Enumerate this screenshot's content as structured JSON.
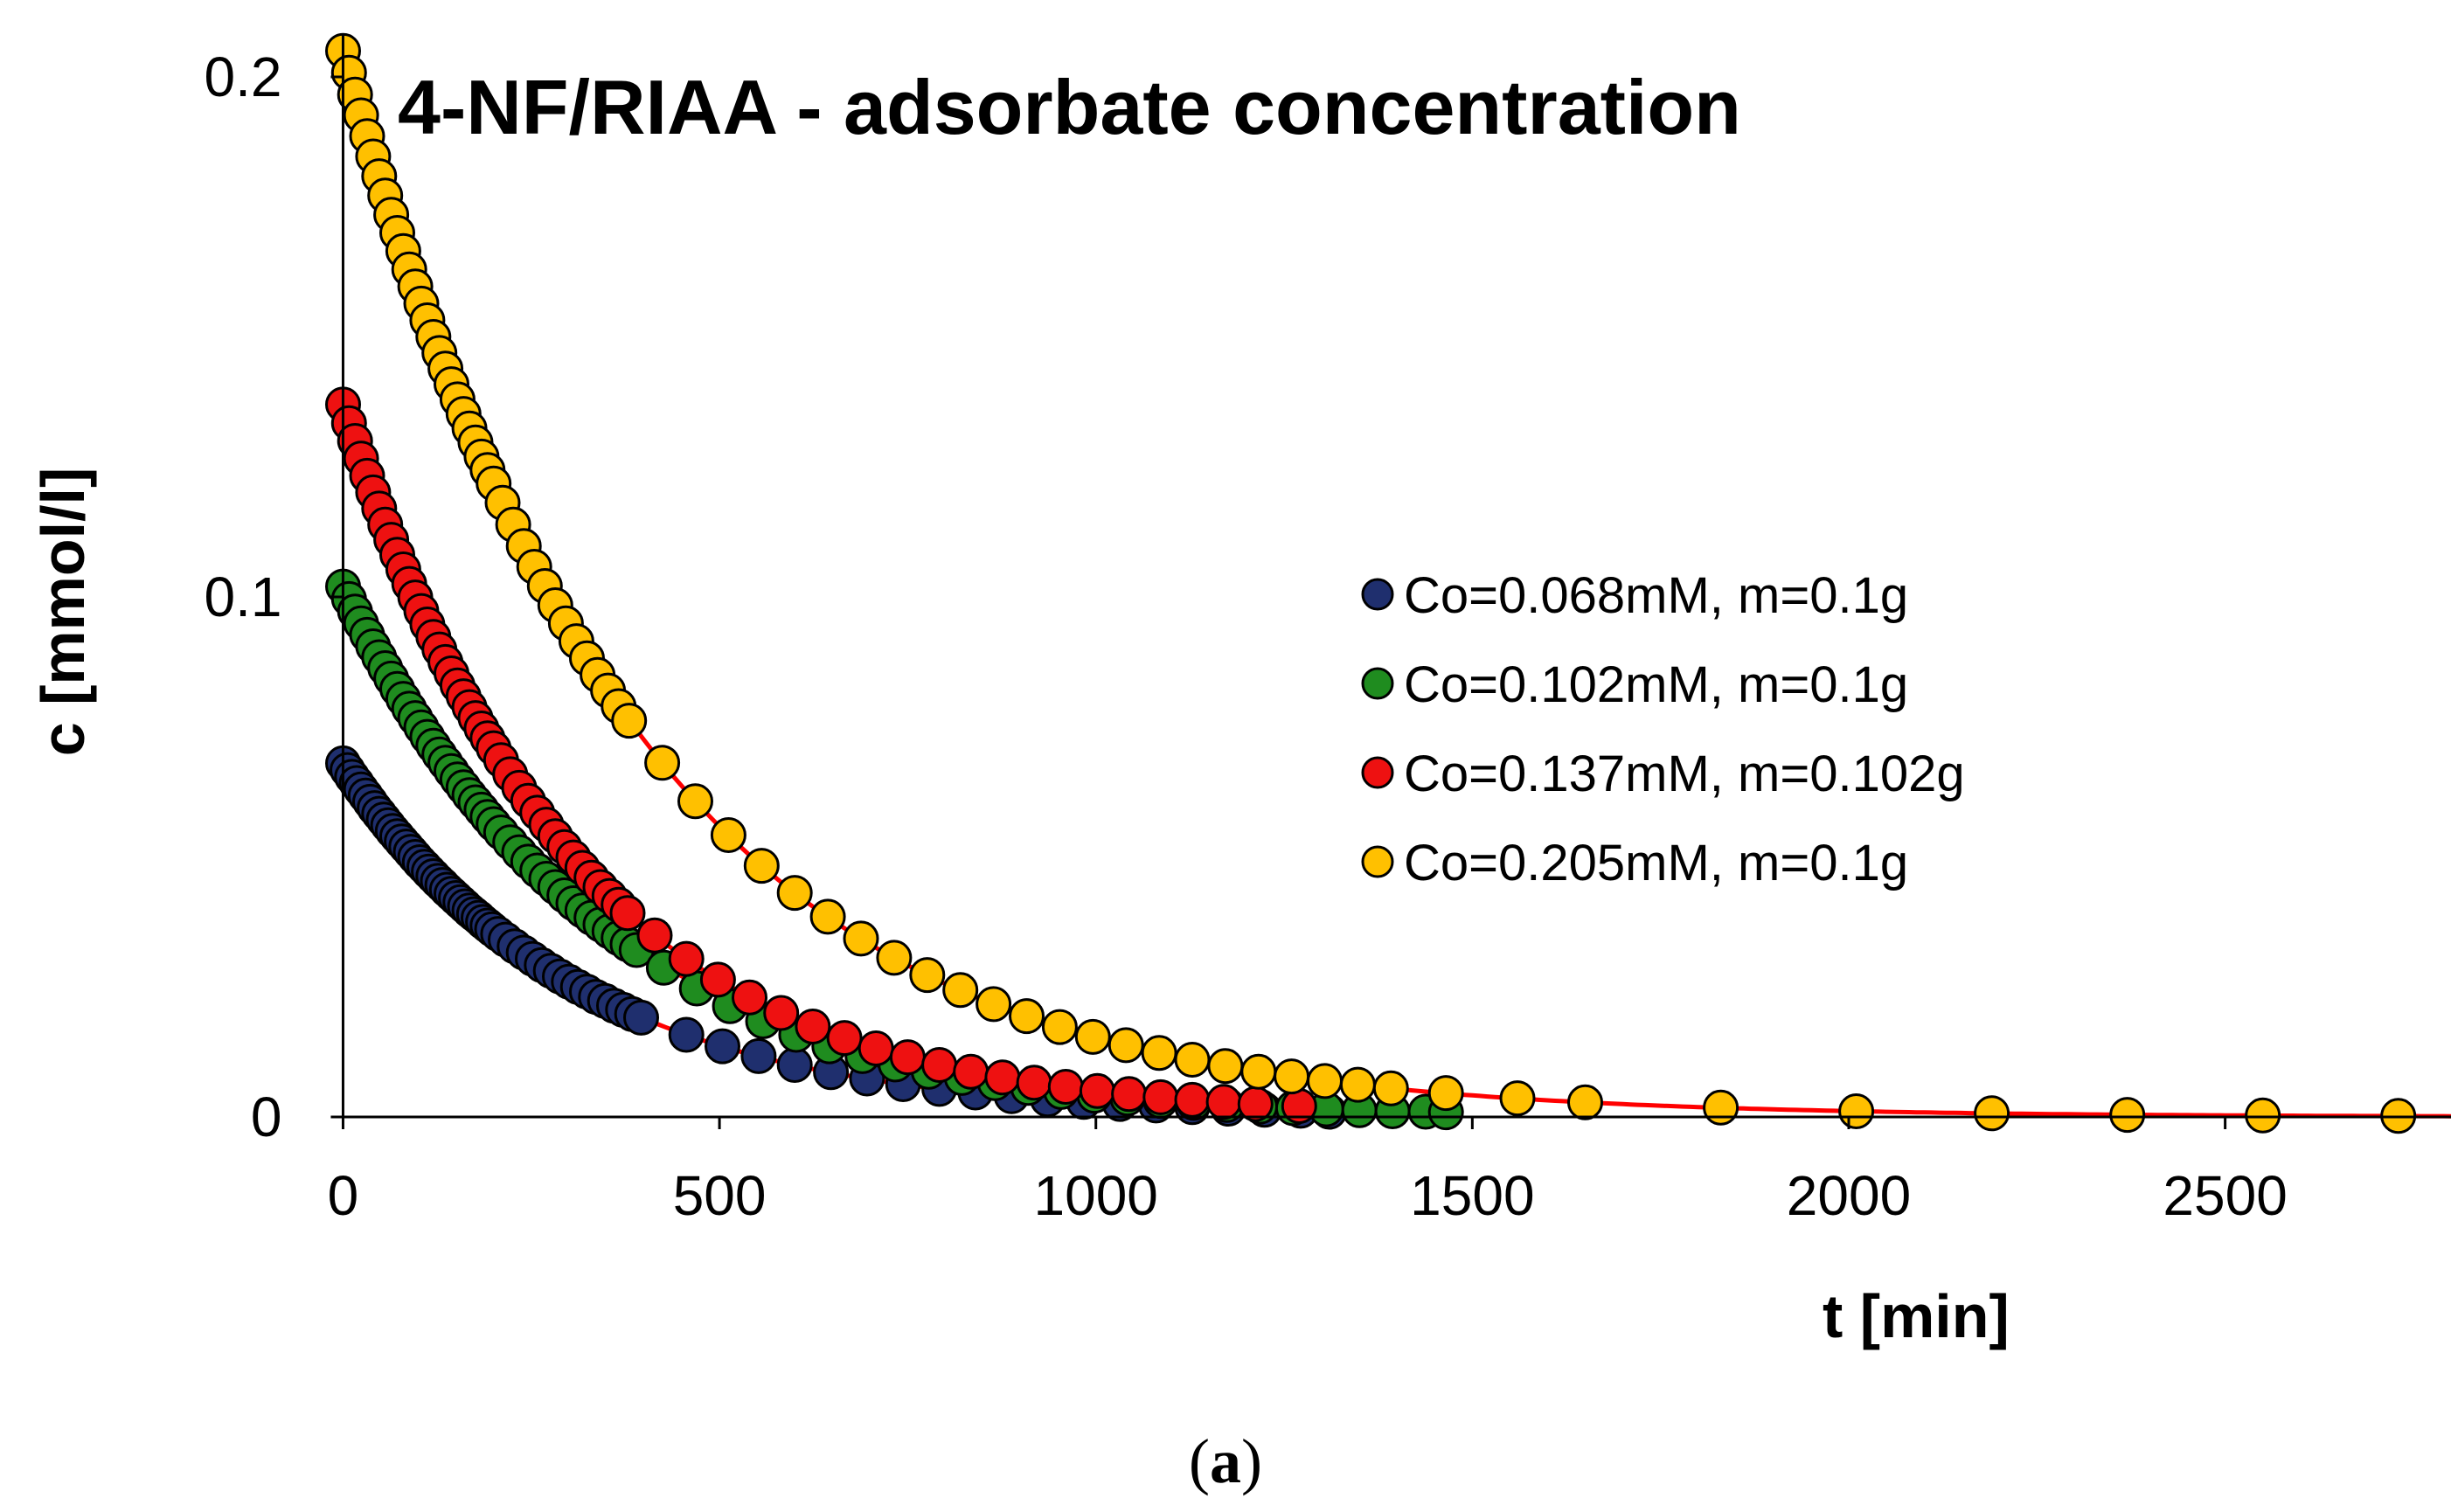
{
  "chart_data": {
    "type": "scatter",
    "title": "4-NF/RIAA - adsorbate concentration",
    "xlabel": "t [min]",
    "ylabel": "c [mmol/l]",
    "caption_prefix": "(",
    "caption_letter": "a",
    "caption_suffix": ")",
    "xlim": [
      -40,
      2800
    ],
    "ylim": [
      0,
      0.21
    ],
    "xticks": [
      0,
      500,
      1000,
      1500,
      2000,
      2500
    ],
    "xtick_labels": [
      "0",
      "500",
      "1000",
      "1500",
      "2000",
      "2500"
    ],
    "yticks": [
      0,
      0.1,
      0.2
    ],
    "ytick_labels": [
      "0",
      "0.1",
      "0.2"
    ],
    "fit_color": "#ff0000",
    "legend_position": "middle-right",
    "series": [
      {
        "name": "Co=0.068mM, m=0.1g",
        "color": "#1f2f6e",
        "c0": 0.068,
        "k": 0.0032,
        "t_end": 1310,
        "fit_end": 1310,
        "x": [
          0,
          6,
          12,
          18,
          24,
          30,
          36,
          42,
          48,
          54,
          60,
          66,
          72,
          78,
          84,
          90,
          96,
          102,
          108,
          114,
          120,
          126,
          132,
          138,
          144,
          150,
          156,
          162,
          168,
          174,
          180,
          186,
          192,
          198,
          206,
          216,
          228,
          240,
          252,
          264,
          276,
          288,
          300,
          312,
          324,
          336,
          348,
          360,
          372,
          384,
          396,
          456,
          504,
          552,
          600,
          648,
          696,
          744,
          792,
          840,
          888,
          936,
          984,
          1032,
          1080,
          1128,
          1176,
          1224,
          1272,
          1310
        ],
        "y": [
          0.068,
          0.0667,
          0.0654,
          0.0642,
          0.063,
          0.0618,
          0.0606,
          0.0594,
          0.0583,
          0.0572,
          0.0561,
          0.055,
          0.054,
          0.053,
          0.052,
          0.051,
          0.05,
          0.049,
          0.0481,
          0.0472,
          0.0463,
          0.0454,
          0.0446,
          0.0437,
          0.0429,
          0.0421,
          0.0413,
          0.0405,
          0.0397,
          0.039,
          0.0383,
          0.0375,
          0.0368,
          0.0361,
          0.0352,
          0.0341,
          0.0328,
          0.0316,
          0.0304,
          0.0292,
          0.0281,
          0.027,
          0.026,
          0.025,
          0.0241,
          0.0231,
          0.0223,
          0.0214,
          0.0206,
          0.0198,
          0.0191,
          0.0158,
          0.0136,
          0.0117,
          0.01,
          0.0086,
          0.0074,
          0.0063,
          0.0054,
          0.0047,
          0.004,
          0.0034,
          0.0029,
          0.0025,
          0.0022,
          0.0019,
          0.0016,
          0.0014,
          0.0012,
          0.001
        ]
      },
      {
        "name": "Co=0.102mM, m=0.1g",
        "color": "#1f8c1f",
        "c0": 0.102,
        "k": 0.00295,
        "t_end": 1465,
        "fit_end": 1400,
        "x": [
          0,
          8,
          16,
          24,
          32,
          40,
          48,
          56,
          64,
          72,
          80,
          88,
          96,
          104,
          112,
          120,
          128,
          136,
          144,
          152,
          160,
          168,
          176,
          184,
          192,
          200,
          210,
          222,
          234,
          246,
          258,
          270,
          282,
          294,
          306,
          318,
          330,
          342,
          354,
          366,
          378,
          390,
          426,
          470,
          514,
          558,
          602,
          646,
          690,
          734,
          778,
          822,
          866,
          910,
          954,
          998,
          1042,
          1086,
          1130,
          1174,
          1218,
          1262,
          1306,
          1350,
          1394,
          1438,
          1465
        ],
        "y": [
          0.102,
          0.0996,
          0.0972,
          0.0949,
          0.0927,
          0.0905,
          0.0884,
          0.0863,
          0.0843,
          0.0823,
          0.0804,
          0.0785,
          0.0767,
          0.0749,
          0.0731,
          0.0714,
          0.0697,
          0.0681,
          0.0665,
          0.0649,
          0.0634,
          0.0619,
          0.0605,
          0.0591,
          0.0577,
          0.0563,
          0.0547,
          0.0528,
          0.0509,
          0.0491,
          0.0474,
          0.0458,
          0.0442,
          0.0426,
          0.0411,
          0.0397,
          0.0383,
          0.037,
          0.0357,
          0.0344,
          0.0332,
          0.0321,
          0.0287,
          0.0247,
          0.0213,
          0.0184,
          0.0158,
          0.0136,
          0.0117,
          0.0101,
          0.0087,
          0.0075,
          0.0065,
          0.0056,
          0.0048,
          0.0041,
          0.0036,
          0.0031,
          0.0027,
          0.0023,
          0.002,
          0.0017,
          0.0015,
          0.0013,
          0.0011,
          0.001,
          0.0009
        ]
      },
      {
        "name": "Co=0.137mM, m=0.102g",
        "color": "#ee1111",
        "c0": 0.137,
        "k": 0.0033,
        "t_end": 1270,
        "fit_end": 1270,
        "x": [
          0,
          8,
          16,
          24,
          32,
          40,
          48,
          56,
          64,
          72,
          80,
          88,
          96,
          104,
          112,
          120,
          128,
          136,
          144,
          152,
          160,
          168,
          176,
          184,
          192,
          200,
          210,
          222,
          234,
          246,
          258,
          270,
          282,
          294,
          306,
          318,
          330,
          342,
          354,
          366,
          378,
          414,
          456,
          498,
          540,
          582,
          624,
          666,
          708,
          750,
          792,
          834,
          876,
          918,
          960,
          1002,
          1044,
          1086,
          1128,
          1170,
          1212,
          1270
        ],
        "y": [
          0.137,
          0.1334,
          0.13,
          0.1266,
          0.1233,
          0.1201,
          0.117,
          0.1139,
          0.111,
          0.1081,
          0.1053,
          0.1025,
          0.0999,
          0.0973,
          0.0947,
          0.0923,
          0.0899,
          0.0875,
          0.0853,
          0.083,
          0.0809,
          0.0788,
          0.0767,
          0.0747,
          0.0728,
          0.0709,
          0.0686,
          0.0659,
          0.0633,
          0.0608,
          0.0585,
          0.0562,
          0.054,
          0.0519,
          0.0499,
          0.0479,
          0.046,
          0.0442,
          0.0425,
          0.0408,
          0.0392,
          0.0349,
          0.0304,
          0.0264,
          0.023,
          0.02,
          0.0174,
          0.0152,
          0.0132,
          0.0115,
          0.01,
          0.0087,
          0.0076,
          0.0066,
          0.0058,
          0.005,
          0.0044,
          0.0038,
          0.0033,
          0.0029,
          0.0025,
          0.0021
        ]
      },
      {
        "name": "Co=0.205mM, m=0.1g",
        "color": "#ffc000",
        "c0": 0.205,
        "k": 0.0026,
        "t_end": 2730,
        "fit_end": 2800,
        "x": [
          0,
          8,
          16,
          24,
          32,
          40,
          48,
          56,
          64,
          72,
          80,
          88,
          96,
          104,
          112,
          120,
          128,
          136,
          144,
          152,
          160,
          168,
          176,
          184,
          192,
          200,
          212,
          226,
          240,
          254,
          268,
          282,
          296,
          310,
          324,
          338,
          352,
          366,
          380,
          424,
          468,
          512,
          556,
          600,
          644,
          688,
          732,
          776,
          820,
          864,
          908,
          952,
          996,
          1040,
          1084,
          1128,
          1172,
          1216,
          1260,
          1304,
          1348,
          1392,
          1465,
          1560,
          1650,
          1830,
          2010,
          2190,
          2370,
          2550,
          2730
        ],
        "y": [
          0.205,
          0.2008,
          0.1966,
          0.1926,
          0.1886,
          0.1847,
          0.1809,
          0.1772,
          0.1735,
          0.17,
          0.1665,
          0.163,
          0.1597,
          0.1564,
          0.1532,
          0.15,
          0.1469,
          0.1439,
          0.1409,
          0.138,
          0.1352,
          0.1324,
          0.1297,
          0.127,
          0.1244,
          0.1218,
          0.1181,
          0.1139,
          0.1098,
          0.1058,
          0.1021,
          0.0984,
          0.0949,
          0.0915,
          0.0882,
          0.085,
          0.082,
          0.079,
          0.0762,
          0.0681,
          0.0607,
          0.0542,
          0.0483,
          0.0431,
          0.0385,
          0.0343,
          0.0306,
          0.0273,
          0.0244,
          0.0217,
          0.0194,
          0.0173,
          0.0154,
          0.0138,
          0.0123,
          0.011,
          0.0098,
          0.0087,
          0.0078,
          0.0069,
          0.0062,
          0.0055,
          0.0046,
          0.0036,
          0.0028,
          0.0018,
          0.0011,
          0.0007,
          0.0004,
          0.0003,
          0.0002
        ]
      }
    ]
  }
}
